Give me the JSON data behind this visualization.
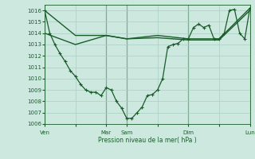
{
  "bg_color": "#cce8df",
  "grid_color": "#aacec5",
  "line_color": "#1a5c2a",
  "ylabel": "Pression niveau de la mer( hPa )",
  "ylim": [
    1006,
    1016.5
  ],
  "yticks": [
    1006,
    1007,
    1008,
    1009,
    1010,
    1011,
    1012,
    1013,
    1014,
    1015,
    1016
  ],
  "xtick_labels": [
    "Ven",
    "",
    "Mar",
    "Sam",
    "",
    "Dim",
    "",
    "Lun"
  ],
  "xtick_positions": [
    0,
    48,
    96,
    128,
    176,
    224,
    272,
    320
  ],
  "vlines": [
    0,
    96,
    128,
    224,
    320
  ],
  "series1_x": [
    0,
    8,
    16,
    24,
    32,
    40,
    48,
    56,
    64,
    72,
    80,
    88,
    96,
    104,
    112,
    120,
    128,
    136,
    144,
    152,
    160,
    168,
    176,
    184,
    192,
    200,
    208,
    216,
    224,
    232,
    240,
    248,
    256,
    264,
    272,
    280,
    288,
    296,
    304,
    312,
    320
  ],
  "series1_y": [
    1016.0,
    1014.0,
    1013.0,
    1012.2,
    1011.5,
    1010.7,
    1010.2,
    1009.5,
    1009.0,
    1008.8,
    1008.8,
    1008.5,
    1009.2,
    1009.0,
    1008.0,
    1007.4,
    1006.5,
    1006.5,
    1007.0,
    1007.5,
    1008.5,
    1008.6,
    1009.0,
    1010.0,
    1012.8,
    1013.0,
    1013.1,
    1013.5,
    1013.5,
    1014.5,
    1014.8,
    1014.5,
    1014.7,
    1013.5,
    1013.5,
    1014.0,
    1016.0,
    1016.1,
    1014.0,
    1013.5,
    1016.2
  ],
  "series2_x": [
    0,
    48,
    96,
    128,
    176,
    224,
    272,
    320
  ],
  "series2_y": [
    1016.0,
    1013.8,
    1013.8,
    1013.5,
    1013.8,
    1013.5,
    1013.5,
    1016.2
  ],
  "series3_x": [
    0,
    48,
    96,
    128,
    176,
    224,
    272,
    320
  ],
  "series3_y": [
    1014.0,
    1013.0,
    1013.8,
    1013.5,
    1013.6,
    1013.4,
    1013.4,
    1016.0
  ],
  "figsize": [
    3.2,
    2.0
  ],
  "dpi": 100
}
